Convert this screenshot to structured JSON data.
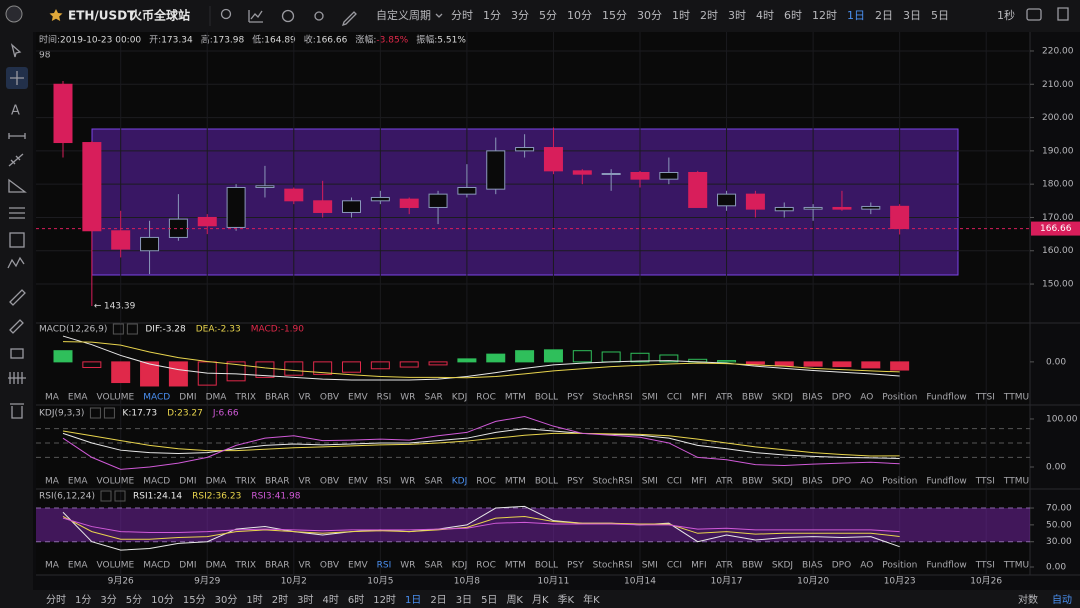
{
  "header": {
    "symbol": "ETH/USDT",
    "exchange": "火币全球站",
    "custom_period": "自定义周期",
    "intervals": [
      "分时",
      "1分",
      "3分",
      "5分",
      "10分",
      "15分",
      "30分",
      "1时",
      "2时",
      "3时",
      "4时",
      "6时",
      "12时",
      "1日",
      "2日",
      "3日",
      "5日"
    ],
    "active_interval": 13,
    "refresh": "1秒"
  },
  "info": [
    {
      "label": "时间:",
      "value": "2019-10-23 00:00"
    },
    {
      "label": "开:",
      "value": "173.34"
    },
    {
      "label": "高:",
      "value": "173.98"
    },
    {
      "label": "低:",
      "value": "164.89"
    },
    {
      "label": "收:",
      "value": "166.66"
    },
    {
      "label": "涨幅:",
      "value": "-3.85%",
      "color": "#e0294a"
    },
    {
      "label": "振幅:",
      "value": "5.51%"
    }
  ],
  "volume_hint": "98",
  "chart_data": {
    "type": "candlestick",
    "categories": [
      null,
      null,
      "9月26",
      null,
      null,
      "9月29",
      null,
      null,
      "10月2",
      null,
      null,
      "10月5",
      null,
      null,
      "10月8",
      null,
      null,
      "10月11",
      null,
      null,
      "10月14",
      null,
      null,
      "10月17",
      null,
      null,
      "10月20",
      null,
      null,
      "10月23",
      null,
      null,
      "10月26"
    ],
    "open": [
      210,
      192.5,
      166,
      160,
      164,
      170,
      167,
      179,
      178.5,
      175,
      171.5,
      175,
      175.5,
      173,
      177,
      178.5,
      190,
      191,
      184,
      183,
      183.5,
      181.5,
      183.5,
      173.5,
      177,
      172,
      172.5,
      173,
      172.5,
      173.34,
      null,
      null,
      null
    ],
    "high": [
      211,
      193,
      172,
      169,
      177,
      171,
      180,
      185.5,
      179,
      181,
      176,
      178,
      176,
      178,
      186,
      194,
      195,
      197,
      184.5,
      184.5,
      184,
      188,
      184,
      178,
      178,
      174.5,
      174,
      178,
      174.5,
      173.98,
      null,
      null,
      null
    ],
    "low": [
      188,
      143.39,
      158,
      153,
      163,
      165,
      166,
      176,
      174,
      170,
      170,
      174,
      171,
      168,
      176,
      177,
      188,
      183,
      180,
      178,
      179,
      180,
      173,
      172,
      170,
      170,
      169,
      172,
      171,
      164.89,
      null,
      null,
      null
    ],
    "close": [
      192.5,
      166,
      160.5,
      164,
      169.5,
      167.5,
      179,
      179.5,
      175,
      171.5,
      175,
      176,
      173,
      177,
      179,
      190,
      191,
      184,
      183,
      183.2,
      181.5,
      183.5,
      173,
      177,
      172.5,
      173,
      173,
      172.5,
      173.3,
      166.66,
      null,
      null,
      null
    ],
    "up_color": "#8a98ba",
    "down_color": "#d81e5b",
    "ylim": [
      138.6,
      225.7
    ],
    "yticks": [
      {
        "value": 150,
        "label": "150.00"
      },
      {
        "value": 160,
        "label": "160.00"
      },
      {
        "value": 170,
        "label": "170.00"
      },
      {
        "value": 180,
        "label": "180.00"
      },
      {
        "value": 190,
        "label": "190.00"
      },
      {
        "value": 200,
        "label": "200.00"
      },
      {
        "value": 210,
        "label": "210.00"
      },
      {
        "value": 220,
        "label": "220.00"
      }
    ],
    "grid": true
  },
  "macd": {
    "title": "MACD(12,26,9)",
    "legend": [
      {
        "text": "DIF:-3.28",
        "color": "#e8e8e8"
      },
      {
        "text": "DEA:-2.33",
        "color": "#e8d44d"
      },
      {
        "text": "MACD:-1.90",
        "color": "#e0294a"
      }
    ],
    "histogram": [
      2.6,
      -1.3,
      -4.8,
      -5.6,
      -5.6,
      -5.4,
      -4.4,
      -3.6,
      -3.1,
      -2.9,
      -2.4,
      -1.6,
      -1.2,
      -0.7,
      0.7,
      1.8,
      2.6,
      2.8,
      2.6,
      2.3,
      2.0,
      1.6,
      0.6,
      0.3,
      -0.5,
      -0.9,
      -1.0,
      -1.1,
      -1.4,
      -1.9
    ],
    "dif": [
      6,
      4,
      1.5,
      -0.5,
      -1.8,
      -2.6,
      -2.8,
      -3.2,
      -3.6,
      -4,
      -4.2,
      -4.2,
      -4.2,
      -4,
      -3.4,
      -2.5,
      -1.5,
      -0.7,
      -0.3,
      0,
      0.2,
      0.3,
      0,
      -0.3,
      -1,
      -1.5,
      -2,
      -2.4,
      -2.8,
      -3.28
    ],
    "dea": [
      4.7,
      4.6,
      3.9,
      2.3,
      1.0,
      0.1,
      -0.6,
      -1.4,
      -2.0,
      -2.5,
      -3.0,
      -3.4,
      -3.6,
      -3.6,
      -3.7,
      -3.4,
      -2.8,
      -2.1,
      -1.6,
      -1.1,
      -0.8,
      -0.5,
      -0.3,
      -0.4,
      -0.7,
      -1.0,
      -1.5,
      -1.8,
      -2.1,
      -2.33
    ],
    "up_color": "#2fbf5b",
    "down_color": "#e0294a",
    "ylim": [
      -6.3,
      8.8
    ],
    "yticks": [
      {
        "value": 0,
        "label": "0.00"
      }
    ],
    "active_tab": 3
  },
  "kdj": {
    "title": "KDJ(9,3,3)",
    "legend": [
      {
        "text": "K:17.73",
        "color": "#e8e8e8"
      },
      {
        "text": "D:23.27",
        "color": "#e8d44d"
      },
      {
        "text": "J:6.66",
        "color": "#d05ad8"
      }
    ],
    "series": [
      {
        "color": "#e8e8e8",
        "values": [
          70,
          50,
          35,
          30,
          28,
          30,
          38,
          45,
          48,
          46,
          48,
          50,
          50,
          55,
          60,
          72,
          80,
          75,
          70,
          68,
          66,
          60,
          45,
          38,
          30,
          25,
          22,
          20,
          19,
          17.73
        ]
      },
      {
        "color": "#e8d44d",
        "values": [
          75,
          65,
          55,
          45,
          38,
          34,
          34,
          37,
          40,
          42,
          44,
          46,
          47,
          50,
          54,
          60,
          66,
          70,
          70,
          69,
          68,
          65,
          58,
          50,
          42,
          36,
          30,
          26,
          23,
          23.27
        ]
      },
      {
        "color": "#d05ad8",
        "values": [
          60,
          20,
          -5,
          0,
          8,
          20,
          45,
          60,
          65,
          55,
          56,
          58,
          56,
          65,
          72,
          95,
          105,
          85,
          70,
          66,
          62,
          50,
          20,
          15,
          5,
          3,
          6,
          8,
          10,
          6.66
        ]
      }
    ],
    "levels": [
      80,
      50,
      20
    ],
    "ylim": [
      -12.5,
      127
    ],
    "yticks": [
      {
        "value": 0,
        "label": "0.00"
      },
      {
        "value": 100,
        "label": "100.00"
      }
    ],
    "active_tab": 14
  },
  "rsi": {
    "title": "RSI(6,12,24)",
    "legend": [
      {
        "text": "RSI1:24.14",
        "color": "#e8e8e8"
      },
      {
        "text": "RSI2:36.23",
        "color": "#e8d44d"
      },
      {
        "text": "RSI3:41.98",
        "color": "#d05ad8"
      }
    ],
    "series": [
      {
        "color": "#e8e8e8",
        "values": [
          65,
          30,
          20,
          22,
          28,
          30,
          45,
          48,
          42,
          38,
          42,
          44,
          42,
          45,
          50,
          70,
          72,
          55,
          52,
          52,
          50,
          52,
          30,
          38,
          32,
          35,
          36,
          35,
          36,
          24.14
        ]
      },
      {
        "color": "#e8d44d",
        "values": [
          60,
          42,
          33,
          33,
          35,
          36,
          42,
          44,
          42,
          40,
          42,
          43,
          42,
          44,
          47,
          58,
          60,
          54,
          52,
          52,
          51,
          51,
          40,
          42,
          39,
          40,
          40,
          40,
          40,
          36.23
        ]
      },
      {
        "color": "#d05ad8",
        "values": [
          58,
          48,
          42,
          41,
          41,
          42,
          44,
          45,
          44,
          43,
          44,
          44,
          44,
          45,
          46,
          52,
          53,
          51,
          51,
          51,
          50,
          50,
          45,
          46,
          44,
          44,
          44,
          44,
          44,
          41.98
        ]
      }
    ],
    "band": [
      30,
      70
    ],
    "ylim": [
      -9.5,
      91.4
    ],
    "yticks": [
      {
        "value": 0,
        "label": "0.00"
      },
      {
        "value": 30,
        "label": "30.00"
      },
      {
        "value": 50,
        "label": "50.00"
      },
      {
        "value": 70,
        "label": "70.00"
      }
    ],
    "active_tab": 11
  },
  "tabs": [
    "MA",
    "EMA",
    "VOLUME",
    "MACD",
    "DMI",
    "DMA",
    "TRIX",
    "BRAR",
    "VR",
    "OBV",
    "EMV",
    "RSI",
    "WR",
    "SAR",
    "KDJ",
    "ROC",
    "MTM",
    "BOLL",
    "PSY",
    "StochRSI",
    "SMI",
    "CCI",
    "MFI",
    "ATR",
    "BBW",
    "SKDJ",
    "BIAS",
    "DPO",
    "AO",
    "Position",
    "Fundflow",
    "TTSI",
    "TTMU"
  ],
  "footer": {
    "periods": [
      "分时",
      "1分",
      "3分",
      "5分",
      "10分",
      "15分",
      "30分",
      "1时",
      "2时",
      "3时",
      "4时",
      "6时",
      "12时",
      "1日",
      "2日",
      "3日",
      "5日",
      "周K",
      "月K",
      "季K",
      "年K"
    ],
    "active_period": 13,
    "log": "对数",
    "auto": "自动"
  }
}
